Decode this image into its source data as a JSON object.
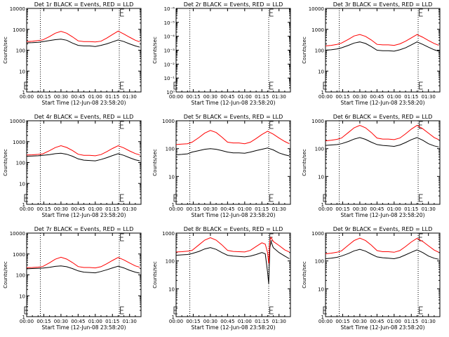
{
  "figure": {
    "xlabel": "Start Time (12-Jun-08 23:58:20)",
    "ylabel": "Counts/sec",
    "x_ticks": [
      "00:00",
      "00:15",
      "00:30",
      "00:45",
      "01:00",
      "01:15",
      "01:30"
    ],
    "colors": {
      "events": "#000000",
      "lld": "#ff0000",
      "axes": "#000000"
    }
  },
  "chart_data": [
    {
      "type": "line",
      "title": "Det 1r BLACK = Events, RED = LLD",
      "xlabel": "Start Time (12-Jun-08 23:58:20)",
      "ylabel": "Counts/sec",
      "x_unit": "minutes",
      "xlim": [
        0,
        100
      ],
      "ylim": [
        1,
        10000
      ],
      "yscale": "log",
      "y_ticks": [
        "1",
        "10",
        "100",
        "1000",
        "10000"
      ],
      "vlines": [
        12,
        81
      ],
      "annotation_at": 82,
      "series": [
        {
          "name": "Events",
          "x": [
            0,
            5,
            10,
            14,
            20,
            25,
            30,
            35,
            40,
            45,
            50,
            55,
            60,
            65,
            70,
            75,
            80,
            85,
            90,
            95,
            99
          ],
          "values": [
            225,
            230,
            240,
            255,
            290,
            320,
            340,
            300,
            220,
            170,
            160,
            160,
            150,
            170,
            200,
            250,
            310,
            260,
            200,
            160,
            140
          ]
        },
        {
          "name": "LLD",
          "x": [
            0,
            5,
            10,
            14,
            20,
            25,
            30,
            35,
            40,
            45,
            50,
            55,
            60,
            65,
            70,
            75,
            80,
            85,
            90,
            95,
            99
          ],
          "values": [
            260,
            270,
            290,
            310,
            450,
            650,
            800,
            650,
            440,
            280,
            260,
            260,
            250,
            270,
            380,
            560,
            820,
            600,
            420,
            300,
            250
          ]
        }
      ]
    },
    {
      "type": "line",
      "title": "Det 2r BLACK = Events, RED = LLD",
      "xlabel": "Start Time (12-Jun-08 23:58:20)",
      "ylabel": "Counts/sec",
      "x_unit": "minutes",
      "xlim": [
        0,
        100
      ],
      "ylim": [
        1,
        1e-06
      ],
      "yscale": "log",
      "y_ticks": [
        "10⁰",
        "10⁻¹",
        "10⁻²",
        "10⁻³",
        "10⁻⁴",
        "10⁻⁵",
        "10⁻⁶"
      ],
      "vlines": [
        12,
        81
      ],
      "annotation_at": 82,
      "series": []
    },
    {
      "type": "line",
      "title": "Det 3r BLACK = Events, RED = LLD",
      "xlabel": "Start Time (12-Jun-08 23:58:20)",
      "ylabel": "Counts/sec",
      "x_unit": "minutes",
      "xlim": [
        0,
        100
      ],
      "ylim": [
        1,
        10000
      ],
      "yscale": "log",
      "y_ticks": [
        "1",
        "10",
        "100",
        "1000",
        "10000"
      ],
      "vlines": [
        12,
        81
      ],
      "annotation_at": 82,
      "series": [
        {
          "name": "Events",
          "x": [
            0,
            5,
            10,
            14,
            20,
            25,
            30,
            35,
            40,
            45,
            50,
            55,
            60,
            65,
            70,
            75,
            80,
            85,
            90,
            95,
            99
          ],
          "values": [
            100,
            105,
            115,
            130,
            170,
            220,
            250,
            210,
            150,
            100,
            95,
            95,
            90,
            105,
            130,
            180,
            250,
            190,
            140,
            105,
            90
          ]
        },
        {
          "name": "LLD",
          "x": [
            0,
            5,
            10,
            14,
            20,
            25,
            30,
            35,
            40,
            45,
            50,
            55,
            60,
            65,
            70,
            75,
            80,
            85,
            90,
            95,
            99
          ],
          "values": [
            160,
            170,
            190,
            220,
            330,
            480,
            560,
            460,
            310,
            190,
            180,
            180,
            170,
            200,
            270,
            390,
            560,
            420,
            290,
            210,
            170
          ]
        }
      ]
    },
    {
      "type": "line",
      "title": "Det 4r BLACK = Events, RED = LLD",
      "xlabel": "Start Time (12-Jun-08 23:58:20)",
      "ylabel": "Counts/sec",
      "x_unit": "minutes",
      "xlim": [
        0,
        100
      ],
      "ylim": [
        1,
        10000
      ],
      "yscale": "log",
      "y_ticks": [
        "1",
        "10",
        "100",
        "1000",
        "10000"
      ],
      "vlines": [
        12,
        81
      ],
      "annotation_at": 82,
      "series": [
        {
          "name": "Events",
          "x": [
            0,
            5,
            10,
            14,
            20,
            25,
            30,
            35,
            40,
            45,
            50,
            55,
            60,
            65,
            70,
            75,
            80,
            85,
            90,
            95,
            99
          ],
          "values": [
            200,
            205,
            210,
            220,
            240,
            265,
            280,
            250,
            200,
            150,
            130,
            125,
            120,
            140,
            170,
            215,
            265,
            220,
            170,
            135,
            120
          ]
        },
        {
          "name": "LLD",
          "x": [
            0,
            5,
            10,
            14,
            20,
            25,
            30,
            35,
            40,
            45,
            50,
            55,
            60,
            65,
            70,
            75,
            80,
            85,
            90,
            95,
            99
          ],
          "values": [
            230,
            235,
            245,
            260,
            370,
            520,
            640,
            530,
            380,
            250,
            220,
            220,
            210,
            240,
            330,
            470,
            640,
            500,
            360,
            270,
            230
          ]
        }
      ]
    },
    {
      "type": "line",
      "title": "Det 5r BLACK = Events, RED = LLD",
      "xlabel": "Start Time (12-Jun-08 23:58:20)",
      "ylabel": "Counts/sec",
      "x_unit": "minutes",
      "xlim": [
        0,
        100
      ],
      "ylim": [
        1,
        1000
      ],
      "yscale": "log",
      "y_ticks": [
        "1",
        "10",
        "100",
        "1000"
      ],
      "vlines": [
        12,
        81
      ],
      "annotation_at": 82,
      "series": [
        {
          "name": "Events",
          "x": [
            0,
            5,
            10,
            14,
            20,
            25,
            30,
            35,
            40,
            45,
            50,
            55,
            60,
            65,
            70,
            75,
            80,
            85,
            90,
            95,
            99
          ],
          "values": [
            60,
            62,
            65,
            75,
            85,
            95,
            100,
            95,
            85,
            75,
            70,
            70,
            68,
            75,
            85,
            95,
            105,
            90,
            70,
            60,
            55
          ]
        },
        {
          "name": "LLD",
          "x": [
            0,
            5,
            10,
            14,
            20,
            25,
            30,
            35,
            40,
            45,
            50,
            55,
            60,
            65,
            70,
            75,
            80,
            85,
            90,
            95,
            99
          ],
          "values": [
            140,
            145,
            150,
            170,
            250,
            360,
            450,
            380,
            260,
            170,
            160,
            160,
            150,
            170,
            230,
            320,
            420,
            330,
            240,
            180,
            150
          ]
        }
      ]
    },
    {
      "type": "line",
      "title": "Det 6r BLACK = Events, RED = LLD",
      "xlabel": "Start Time (12-Jun-08 23:58:20)",
      "ylabel": "Counts/sec",
      "x_unit": "minutes",
      "xlim": [
        0,
        100
      ],
      "ylim": [
        1,
        1000
      ],
      "yscale": "log",
      "y_ticks": [
        "1",
        "10",
        "100",
        "1000"
      ],
      "vlines": [
        12,
        81
      ],
      "annotation_at": 82,
      "series": [
        {
          "name": "Events",
          "x": [
            0,
            5,
            10,
            14,
            20,
            25,
            30,
            35,
            40,
            45,
            50,
            55,
            60,
            65,
            70,
            75,
            80,
            85,
            90,
            95,
            99
          ],
          "values": [
            130,
            135,
            140,
            150,
            180,
            220,
            250,
            215,
            170,
            140,
            130,
            125,
            120,
            135,
            165,
            210,
            250,
            200,
            150,
            125,
            115
          ]
        },
        {
          "name": "LLD",
          "x": [
            0,
            5,
            10,
            14,
            20,
            25,
            30,
            35,
            40,
            45,
            50,
            55,
            60,
            65,
            70,
            75,
            80,
            85,
            90,
            95,
            99
          ],
          "values": [
            190,
            200,
            215,
            240,
            380,
            560,
            680,
            560,
            380,
            240,
            220,
            220,
            210,
            240,
            340,
            500,
            680,
            520,
            360,
            250,
            210
          ]
        }
      ]
    },
    {
      "type": "line",
      "title": "Det 7r BLACK = Events, RED = LLD",
      "xlabel": "Start Time (12-Jun-08 23:58:20)",
      "ylabel": "Counts/sec",
      "x_unit": "minutes",
      "xlim": [
        0,
        100
      ],
      "ylim": [
        1,
        10000
      ],
      "yscale": "log",
      "y_ticks": [
        "1",
        "10",
        "100",
        "1000",
        "10000"
      ],
      "vlines": [
        12,
        81
      ],
      "annotation_at": 82,
      "series": [
        {
          "name": "Events",
          "x": [
            0,
            5,
            10,
            14,
            20,
            25,
            30,
            35,
            40,
            45,
            50,
            55,
            60,
            65,
            70,
            75,
            80,
            85,
            90,
            95,
            99
          ],
          "values": [
            195,
            200,
            205,
            210,
            230,
            255,
            270,
            245,
            200,
            155,
            135,
            130,
            125,
            145,
            175,
            215,
            260,
            215,
            165,
            135,
            120
          ]
        },
        {
          "name": "LLD",
          "x": [
            0,
            5,
            10,
            14,
            20,
            25,
            30,
            35,
            40,
            45,
            50,
            55,
            60,
            65,
            70,
            75,
            80,
            85,
            90,
            95,
            99
          ],
          "values": [
            220,
            225,
            235,
            250,
            380,
            560,
            700,
            570,
            390,
            250,
            225,
            225,
            215,
            245,
            340,
            490,
            680,
            520,
            370,
            270,
            230
          ]
        }
      ]
    },
    {
      "type": "line",
      "title": "Det 8r BLACK = Events, RED = LLD",
      "xlabel": "Start Time (12-Jun-08 23:58:20)",
      "ylabel": "Counts/sec",
      "x_unit": "minutes",
      "xlim": [
        0,
        100
      ],
      "ylim": [
        1,
        1000
      ],
      "yscale": "log",
      "y_ticks": [
        "1",
        "10",
        "100",
        "1000"
      ],
      "vlines": [
        12,
        81
      ],
      "annotation_at": 82,
      "series": [
        {
          "name": "Events",
          "x": [
            0,
            5,
            10,
            14,
            20,
            25,
            30,
            35,
            40,
            45,
            50,
            55,
            60,
            65,
            70,
            75,
            78,
            80,
            81,
            82,
            83,
            85,
            90,
            95,
            99
          ],
          "values": [
            160,
            165,
            170,
            185,
            220,
            270,
            300,
            260,
            200,
            160,
            150,
            145,
            140,
            150,
            170,
            200,
            180,
            40,
            15,
            300,
            500,
            300,
            200,
            150,
            120
          ]
        },
        {
          "name": "LLD",
          "x": [
            0,
            5,
            10,
            14,
            20,
            25,
            30,
            35,
            40,
            45,
            50,
            55,
            60,
            65,
            70,
            75,
            78,
            80,
            81,
            82,
            83,
            85,
            90,
            95,
            99
          ],
          "values": [
            210,
            215,
            225,
            240,
            380,
            560,
            680,
            560,
            380,
            240,
            220,
            215,
            210,
            240,
            330,
            450,
            400,
            200,
            80,
            550,
            700,
            500,
            360,
            250,
            210
          ]
        }
      ]
    },
    {
      "type": "line",
      "title": "Det 9r BLACK = Events, RED = LLD",
      "xlabel": "Start Time (12-Jun-08 23:58:20)",
      "ylabel": "Counts/sec",
      "x_unit": "minutes",
      "xlim": [
        0,
        100
      ],
      "ylim": [
        1,
        1000
      ],
      "yscale": "log",
      "y_ticks": [
        "1",
        "10",
        "100",
        "1000"
      ],
      "vlines": [
        12,
        81
      ],
      "annotation_at": 82,
      "series": [
        {
          "name": "Events",
          "x": [
            0,
            5,
            10,
            14,
            20,
            25,
            30,
            35,
            40,
            45,
            50,
            55,
            60,
            65,
            70,
            75,
            80,
            85,
            90,
            95,
            99
          ],
          "values": [
            120,
            125,
            135,
            150,
            185,
            230,
            260,
            225,
            175,
            140,
            130,
            125,
            120,
            135,
            165,
            205,
            250,
            200,
            150,
            125,
            115
          ]
        },
        {
          "name": "LLD",
          "x": [
            0,
            5,
            10,
            14,
            20,
            25,
            30,
            35,
            40,
            45,
            50,
            55,
            60,
            65,
            70,
            75,
            80,
            85,
            90,
            95,
            99
          ],
          "values": [
            180,
            190,
            205,
            230,
            370,
            540,
            660,
            540,
            370,
            235,
            215,
            215,
            205,
            235,
            330,
            480,
            650,
            500,
            350,
            245,
            205
          ]
        }
      ]
    }
  ]
}
